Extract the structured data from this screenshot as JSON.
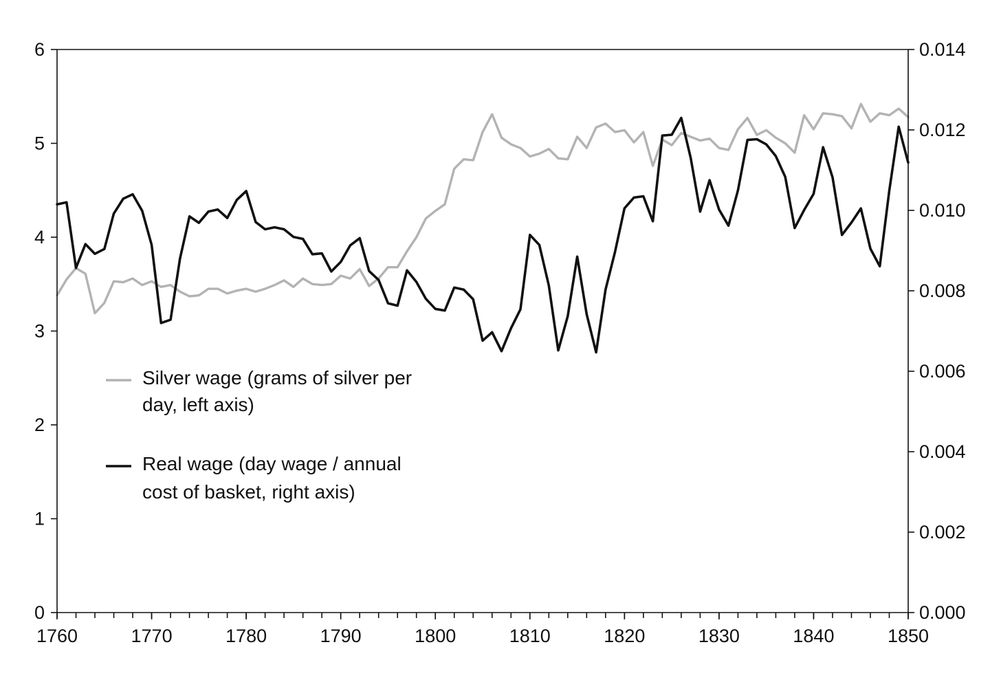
{
  "chart_data": {
    "type": "line",
    "title": "",
    "xlabel": "",
    "ylabel": "",
    "y2label": "",
    "xlim": [
      1760,
      1850
    ],
    "ylim": [
      0,
      6
    ],
    "y2lim": [
      0,
      0.014
    ],
    "x_ticks": [
      1760,
      1770,
      1780,
      1790,
      1800,
      1810,
      1820,
      1830,
      1840,
      1850
    ],
    "x_tick_labels": [
      "1760",
      "1770",
      "1780",
      "1790",
      "1800",
      "1810",
      "1820",
      "1830",
      "1840",
      "1850"
    ],
    "y_ticks": [
      0,
      1,
      2,
      3,
      4,
      5,
      6
    ],
    "y_tick_labels": [
      "0",
      "1",
      "2",
      "3",
      "4",
      "5",
      "6"
    ],
    "y2_ticks": [
      0,
      0.002,
      0.004,
      0.006,
      0.008,
      0.01,
      0.012,
      0.014
    ],
    "y2_tick_labels": [
      "0.000",
      "0.002",
      "0.004",
      "0.006",
      "0.008",
      "0.010",
      "0.012",
      "0.014"
    ],
    "grid": false,
    "legend_position": "center-left",
    "x": [
      1760,
      1761,
      1762,
      1763,
      1764,
      1765,
      1766,
      1767,
      1768,
      1769,
      1770,
      1771,
      1772,
      1773,
      1774,
      1775,
      1776,
      1777,
      1778,
      1779,
      1780,
      1781,
      1782,
      1783,
      1784,
      1785,
      1786,
      1787,
      1788,
      1789,
      1790,
      1791,
      1792,
      1793,
      1794,
      1795,
      1796,
      1797,
      1798,
      1799,
      1800,
      1801,
      1802,
      1803,
      1804,
      1805,
      1806,
      1807,
      1808,
      1809,
      1810,
      1811,
      1812,
      1813,
      1814,
      1815,
      1816,
      1817,
      1818,
      1819,
      1820,
      1821,
      1822,
      1823,
      1824,
      1825,
      1826,
      1827,
      1828,
      1829,
      1830,
      1831,
      1832,
      1833,
      1834,
      1835,
      1836,
      1837,
      1838,
      1839,
      1840,
      1841,
      1842,
      1843,
      1844,
      1845,
      1846,
      1847,
      1848,
      1849,
      1850
    ],
    "series": [
      {
        "name": "Silver wage (grams of silver per day, left axis)",
        "legend_lines": [
          "Silver wage (grams of silver per",
          "day, left axis)"
        ],
        "axis": "left",
        "color": "#b3b3b3",
        "values": [
          3.38,
          3.55,
          3.67,
          3.61,
          3.19,
          3.3,
          3.53,
          3.52,
          3.56,
          3.49,
          3.53,
          3.47,
          3.49,
          3.42,
          3.37,
          3.38,
          3.45,
          3.45,
          3.4,
          3.43,
          3.45,
          3.42,
          3.45,
          3.49,
          3.54,
          3.47,
          3.56,
          3.5,
          3.49,
          3.5,
          3.59,
          3.56,
          3.66,
          3.48,
          3.56,
          3.68,
          3.68,
          3.85,
          4.0,
          4.2,
          4.28,
          4.35,
          4.73,
          4.83,
          4.82,
          5.12,
          5.31,
          5.06,
          4.99,
          4.95,
          4.86,
          4.89,
          4.94,
          4.84,
          4.83,
          5.07,
          4.95,
          5.17,
          5.21,
          5.12,
          5.14,
          5.01,
          5.12,
          4.76,
          5.04,
          4.98,
          5.11,
          5.07,
          5.03,
          5.05,
          4.95,
          4.93,
          5.15,
          5.27,
          5.09,
          5.14,
          5.06,
          5.0,
          4.9,
          5.3,
          5.15,
          5.32,
          5.31,
          5.29,
          5.16,
          5.42,
          5.23,
          5.32,
          5.3,
          5.37,
          5.28
        ]
      },
      {
        "name": "Real wage (day wage / annual cost of basket, right axis)",
        "legend_lines": [
          "Real wage (day wage / annual",
          "cost of basket, right axis)"
        ],
        "axis": "right",
        "color": "#111111",
        "values": [
          0.01015,
          0.0102,
          0.00857,
          0.00916,
          0.00892,
          0.00904,
          0.00992,
          0.01029,
          0.0104,
          0.00999,
          0.00914,
          0.0072,
          0.00728,
          0.0088,
          0.00985,
          0.00969,
          0.00997,
          0.01002,
          0.00981,
          0.01026,
          0.01048,
          0.00971,
          0.00953,
          0.00958,
          0.00953,
          0.00934,
          0.00929,
          0.00891,
          0.00893,
          0.00848,
          0.00872,
          0.00913,
          0.00931,
          0.00849,
          0.00827,
          0.00769,
          0.00763,
          0.00851,
          0.00822,
          0.0078,
          0.00755,
          0.00751,
          0.00808,
          0.00803,
          0.00779,
          0.00676,
          0.00697,
          0.0065,
          0.00707,
          0.00754,
          0.00939,
          0.00914,
          0.00813,
          0.00652,
          0.00737,
          0.00885,
          0.00742,
          0.00647,
          0.00803,
          0.00897,
          0.01005,
          0.01032,
          0.01035,
          0.00973,
          0.01186,
          0.01188,
          0.0123,
          0.01131,
          0.00997,
          0.01075,
          0.01002,
          0.00962,
          0.0105,
          0.01175,
          0.01177,
          0.01164,
          0.01135,
          0.01083,
          0.00956,
          0.01001,
          0.01041,
          0.01157,
          0.01082,
          0.00939,
          0.0097,
          0.01005,
          0.00905,
          0.00861,
          0.01049,
          0.01208,
          0.01119
        ]
      }
    ]
  }
}
